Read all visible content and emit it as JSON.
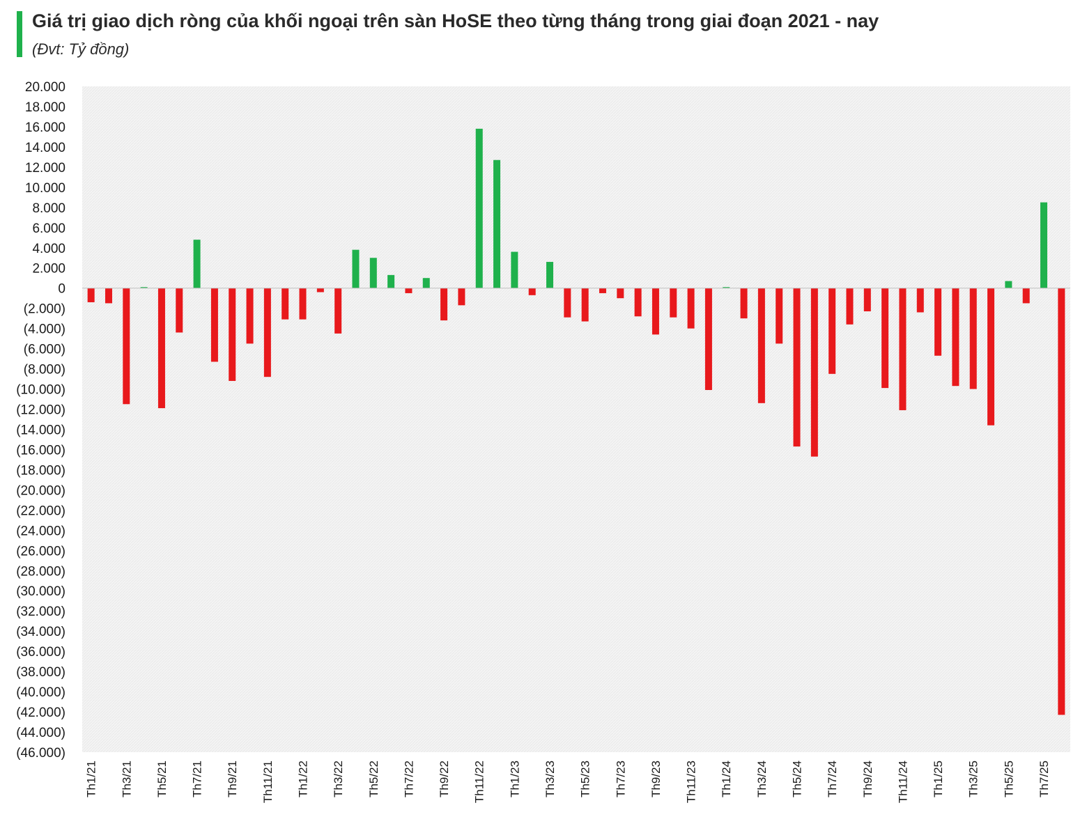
{
  "chart_data": {
    "type": "bar",
    "title": "Giá trị giao dịch ròng của khối ngoại trên sàn HoSE theo từng tháng trong giai đoạn 2021 - nay",
    "subtitle": "(Đvt: Tỷ đồng)",
    "xlabel": "",
    "ylabel": "",
    "ylim": [
      -46000,
      20000
    ],
    "ytick_step": 2000,
    "grid": false,
    "colors": {
      "positive": "#1fb14c",
      "negative": "#e8191c",
      "plot_bg": "#f2f2f2",
      "title_accent": "#1fb14c"
    },
    "categories": [
      "Th1/21",
      "Th2/21",
      "Th3/21",
      "Th4/21",
      "Th5/21",
      "Th6/21",
      "Th7/21",
      "Th8/21",
      "Th9/21",
      "Th10/21",
      "Th11/21",
      "Th12/21",
      "Th1/22",
      "Th2/22",
      "Th3/22",
      "Th4/22",
      "Th5/22",
      "Th6/22",
      "Th7/22",
      "Th8/22",
      "Th9/22",
      "Th10/22",
      "Th11/22",
      "Th12/22",
      "Th1/23",
      "Th2/23",
      "Th3/23",
      "Th4/23",
      "Th5/23",
      "Th6/23",
      "Th7/23",
      "Th8/23",
      "Th9/23",
      "Th10/23",
      "Th11/23",
      "Th12/23",
      "Th1/24",
      "Th2/24",
      "Th3/24",
      "Th4/24",
      "Th5/24",
      "Th6/24",
      "Th7/24",
      "Th8/24",
      "Th9/24",
      "Th10/24",
      "Th11/24",
      "Th12/24",
      "Th1/25",
      "Th2/25",
      "Th3/25",
      "Th4/25",
      "Th5/25",
      "Th6/25",
      "Th7/25",
      "Th8/25"
    ],
    "shown_labels": [
      "Th1/21",
      "Th3/21",
      "Th5/21",
      "Th7/21",
      "Th9/21",
      "Th11/21",
      "Th1/22",
      "Th3/22",
      "Th5/22",
      "Th7/22",
      "Th9/22",
      "Th11/22",
      "Th1/23",
      "Th3/23",
      "Th5/23",
      "Th7/23",
      "Th9/23",
      "Th11/23",
      "Th1/24",
      "Th3/24",
      "Th5/24",
      "Th7/24",
      "Th9/24",
      "Th11/24",
      "Th1/25",
      "Th3/25",
      "Th5/25",
      "Th7/25"
    ],
    "values": [
      -1400,
      -1500,
      -11500,
      100,
      -11900,
      -4400,
      4800,
      -7300,
      -9200,
      -5500,
      -8800,
      -3100,
      -3100,
      -400,
      -4500,
      3800,
      3000,
      1300,
      -500,
      1000,
      -3200,
      -1700,
      15800,
      12700,
      3600,
      -700,
      2600,
      -2900,
      -3300,
      -500,
      -1000,
      -2800,
      -4600,
      -2900,
      -4000,
      -10100,
      100,
      -3000,
      -11400,
      -5500,
      -15700,
      -16700,
      -8500,
      -3600,
      -2300,
      -9900,
      -12100,
      -2400,
      -6700,
      -9700,
      -10000,
      -13600,
      700,
      -1500,
      8500,
      -42300
    ]
  }
}
